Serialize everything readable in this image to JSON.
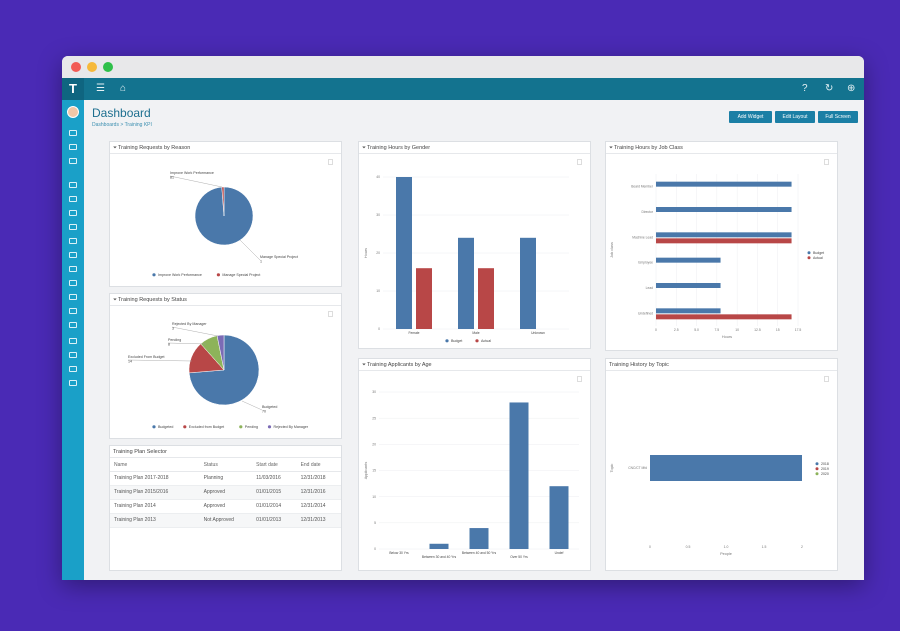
{
  "header": {
    "title": "Dashboard",
    "breadcrumb": "Dashboards > Training KPI",
    "buttons": {
      "add_widget": "Add Widget",
      "edit_layout": "Edit Layout",
      "full_screen": "Full Screen"
    }
  },
  "icons": {
    "logo": "T",
    "menu": "☰",
    "home": "⌂",
    "help": "?",
    "refresh": "↻",
    "globe": "⊕",
    "filter": "⏷"
  },
  "colors": {
    "budget": "#4a78aa",
    "actual": "#b84747",
    "pending": "#8db35a",
    "rejected": "#7b6bb5",
    "y2019": "#4a78aa",
    "y2020": "#8db35a"
  },
  "panels": {
    "reason": {
      "title": "Training Requests by Reason"
    },
    "gender": {
      "title": "Training Hours by Gender"
    },
    "jobclass": {
      "title": "Training Hours by Job Class"
    },
    "status": {
      "title": "Training Requests by Status"
    },
    "age": {
      "title": "Training Applicants by Age"
    },
    "topic": {
      "title": "Training History by Topic"
    },
    "plan": {
      "title": "Training Plan Selector"
    }
  },
  "chart_data": [
    {
      "id": "reason",
      "type": "pie",
      "labels": [
        "Improve Work Performance",
        "Manage Special Project"
      ],
      "values": [
        81,
        1
      ],
      "slice_labels": [
        "Improve Work Performance\n81",
        "Manage Special Project\n1"
      ],
      "legend": [
        "Improve Work Performance",
        "Manage Special Project"
      ],
      "legend_position": "bottom"
    },
    {
      "id": "gender",
      "type": "bar",
      "categories": [
        "Female",
        "Male",
        "Unknown"
      ],
      "series": [
        {
          "name": "Budget",
          "values": [
            40,
            24,
            24
          ]
        },
        {
          "name": "Actual",
          "values": [
            16,
            16,
            0
          ]
        }
      ],
      "ylabel": "Hours",
      "ylim": [
        0,
        40
      ],
      "yticks": [
        0,
        10,
        20,
        30,
        40
      ],
      "grid": true,
      "legend_position": "bottom"
    },
    {
      "id": "jobclass",
      "type": "bar",
      "orientation": "horizontal",
      "categories": [
        "Board Member",
        "Director",
        "Machine Lead",
        "Employee",
        "Lead",
        "Undefined"
      ],
      "series": [
        {
          "name": "Budget",
          "values": [
            10.5,
            10.5,
            10.5,
            5,
            5,
            5
          ]
        },
        {
          "name": "Actual",
          "values": [
            0,
            0,
            10.5,
            0,
            0,
            10.5
          ]
        }
      ],
      "xlabel": "Hours",
      "ylabel": "Job class",
      "xlim": [
        0,
        11
      ],
      "xticks": [
        "0",
        "2.5",
        "5.0",
        "7.5",
        "10",
        "12.5",
        "15",
        "17.5"
      ],
      "grid": true,
      "legend_position": "right"
    },
    {
      "id": "status",
      "type": "pie",
      "labels": [
        "Budgeted",
        "Excluded from Budget",
        "Pending",
        "Rejected By Manager"
      ],
      "values": [
        70,
        14,
        8,
        3
      ],
      "slice_labels": [
        "Budgeted\n70",
        "Excluded From Budget\n14",
        "Pending\n8",
        "Rejected By Manager\n3"
      ],
      "legend": [
        "Budgeted",
        "Excluded from Budget",
        "Pending",
        "Rejected By Manager"
      ],
      "legend_position": "bottom"
    },
    {
      "id": "age",
      "type": "bar",
      "categories": [
        "Below 30 Yrs",
        "Between 30 and 40 Yrs",
        "Between 40 and 50 Yrs",
        "Over 50 Yrs",
        "Undef"
      ],
      "values": [
        0,
        1,
        4,
        28,
        12
      ],
      "ylabel": "Applicants",
      "ylim": [
        0,
        30
      ],
      "yticks": [
        0,
        5,
        10,
        15,
        20,
        25,
        30
      ],
      "grid": true
    },
    {
      "id": "topic",
      "type": "bar",
      "orientation": "horizontal",
      "categories": [
        "CNC/CT Mfd"
      ],
      "series": [
        {
          "name": "2018",
          "values": [
            1
          ]
        }
      ],
      "legend": [
        "2018",
        "2019",
        "2020"
      ],
      "xlabel": "People",
      "ylabel": "Topic",
      "xlim": [
        0,
        1
      ],
      "xticks": [
        "0",
        "0.5",
        "1.0",
        "1.5",
        "2"
      ],
      "legend_position": "right"
    },
    {
      "id": "plan",
      "type": "table",
      "columns": [
        "Name",
        "Status",
        "Start date",
        "End date"
      ],
      "rows": [
        [
          "Training Plan 2017-2018",
          "Planning",
          "11/03/2016",
          "12/31/2018"
        ],
        [
          "Training Plan 2015/2016",
          "Approved",
          "01/01/2015",
          "12/31/2016"
        ],
        [
          "Training Plan 2014",
          "Approved",
          "01/01/2014",
          "12/31/2014"
        ],
        [
          "Training Plan 2013",
          "Not Approved",
          "01/01/2013",
          "12/31/2013"
        ]
      ]
    }
  ]
}
